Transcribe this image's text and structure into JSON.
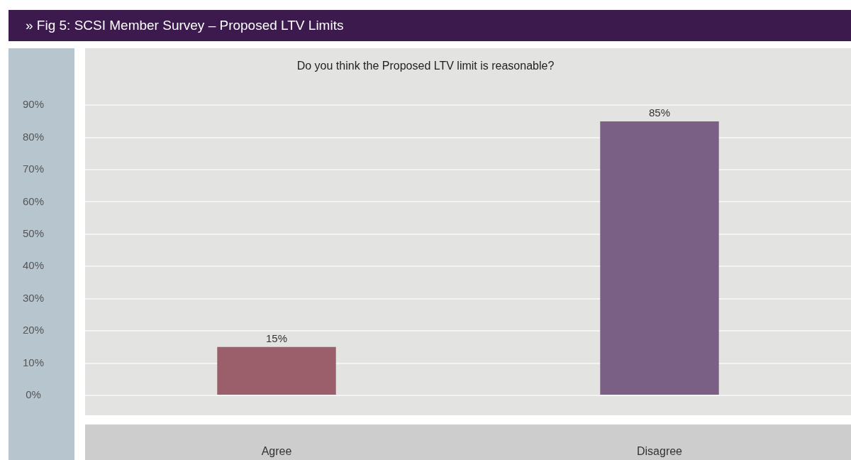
{
  "chart_data": {
    "type": "bar",
    "title": "» Fig 5: SCSI Member Survey – Proposed LTV Limits",
    "subtitle": "Do you think the Proposed LTV limit is reasonable?",
    "categories": [
      "Agree",
      "Disagree"
    ],
    "values": [
      15,
      85
    ],
    "colors": [
      "#9a5f6a",
      "#7a6085"
    ],
    "ylim": [
      0,
      90
    ],
    "yticks": [
      {
        "value": 0,
        "label": "0%"
      },
      {
        "value": 10,
        "label": "10%"
      },
      {
        "value": 20,
        "label": "20%"
      },
      {
        "value": 30,
        "label": "30%"
      },
      {
        "value": 40,
        "label": "40%"
      },
      {
        "value": 50,
        "label": "50%"
      },
      {
        "value": 60,
        "label": "60%"
      },
      {
        "value": 70,
        "label": "70%"
      },
      {
        "value": 80,
        "label": "80%"
      },
      {
        "value": 90,
        "label": "90%"
      }
    ],
    "value_labels": [
      "15%",
      "85%"
    ],
    "grid": "y",
    "legend": false
  }
}
